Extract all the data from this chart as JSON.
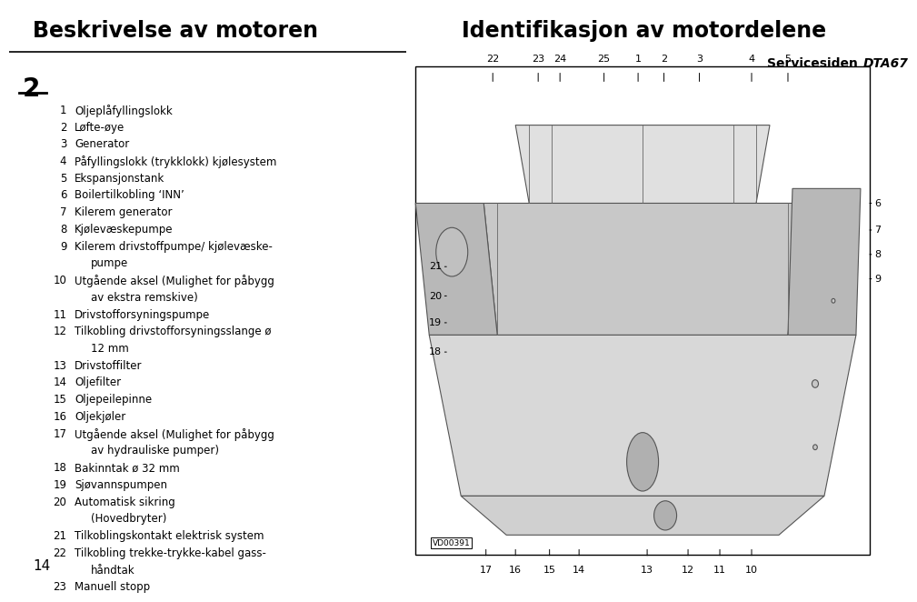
{
  "title_left": "Beskrivelse av motoren",
  "title_right": "Identifikasjon av motordelene",
  "subtitle_right": "Servicesiden ",
  "subtitle_italic": "DTA67",
  "page_number": "2",
  "bottom_number": "14",
  "bg_color": "#ffffff",
  "text_color": "#000000",
  "title_fontsize": 17,
  "body_fontsize": 8.5,
  "subtitle_fontsize": 10,
  "item_lines": [
    [
      "1",
      "Oljeplåfyllingslokk"
    ],
    [
      "2",
      "Løfte-øye"
    ],
    [
      "3",
      "Generator"
    ],
    [
      "4",
      "Påfyllingslokk (trykklokk) kjølesystem"
    ],
    [
      "5",
      "Ekspansjonstank"
    ],
    [
      "6",
      "Boilertilkobling ‘INN’"
    ],
    [
      "7",
      "Kilerem generator"
    ],
    [
      "8",
      "Kjølevæskepumpe"
    ],
    [
      "9",
      "Kilerem drivstoffpumpe/ kjølevæske-"
    ],
    [
      "",
      "pumpe"
    ],
    [
      "10",
      "Utgående aksel (Mulighet for påbygg"
    ],
    [
      "",
      "av ekstra remskive)"
    ],
    [
      "11",
      "Drivstofforsyningspumpe"
    ],
    [
      "12",
      "Tilkobling drivstofforsyningsslange ø"
    ],
    [
      "",
      "12 mm"
    ],
    [
      "13",
      "Drivstoffilter"
    ],
    [
      "14",
      "Oljefilter"
    ],
    [
      "15",
      "Oljepeilepinne"
    ],
    [
      "16",
      "Oljekjøler"
    ],
    [
      "17",
      "Utgående aksel (Mulighet for påbygg"
    ],
    [
      "",
      "av hydrauliske pumper)"
    ],
    [
      "18",
      "Bakinntak ø 32 mm"
    ],
    [
      "19",
      "Sjøvannspumpen"
    ],
    [
      "20",
      "Automatisk sikring"
    ],
    [
      "",
      "(Hovedbryter)"
    ],
    [
      "21",
      "Tilkoblingskontakt elektrisk system"
    ],
    [
      "22",
      "Tilkobling trekke-trykke-kabel gass-"
    ],
    [
      "",
      "håndtak"
    ],
    [
      "23",
      "Manuell stopp"
    ]
  ],
  "top_labels": [
    [
      "22",
      0.17
    ],
    [
      "23",
      0.27
    ],
    [
      "24",
      0.318
    ],
    [
      "25",
      0.415
    ],
    [
      "1",
      0.49
    ],
    [
      "2",
      0.547
    ],
    [
      "3",
      0.625
    ],
    [
      "4",
      0.74
    ],
    [
      "5",
      0.82
    ]
  ],
  "right_labels": [
    [
      "6",
      0.72
    ],
    [
      "7",
      0.665
    ],
    [
      "8",
      0.615
    ],
    [
      "9",
      0.565
    ]
  ],
  "left_labels": [
    [
      "21",
      0.59
    ],
    [
      "20",
      0.53
    ],
    [
      "19",
      0.475
    ],
    [
      "18",
      0.415
    ]
  ],
  "bottom_labels": [
    [
      "17",
      0.155
    ],
    [
      "16",
      0.22
    ],
    [
      "15",
      0.295
    ],
    [
      "14",
      0.36
    ],
    [
      "13",
      0.51
    ],
    [
      "12",
      0.6
    ],
    [
      "11",
      0.67
    ],
    [
      "10",
      0.74
    ]
  ]
}
